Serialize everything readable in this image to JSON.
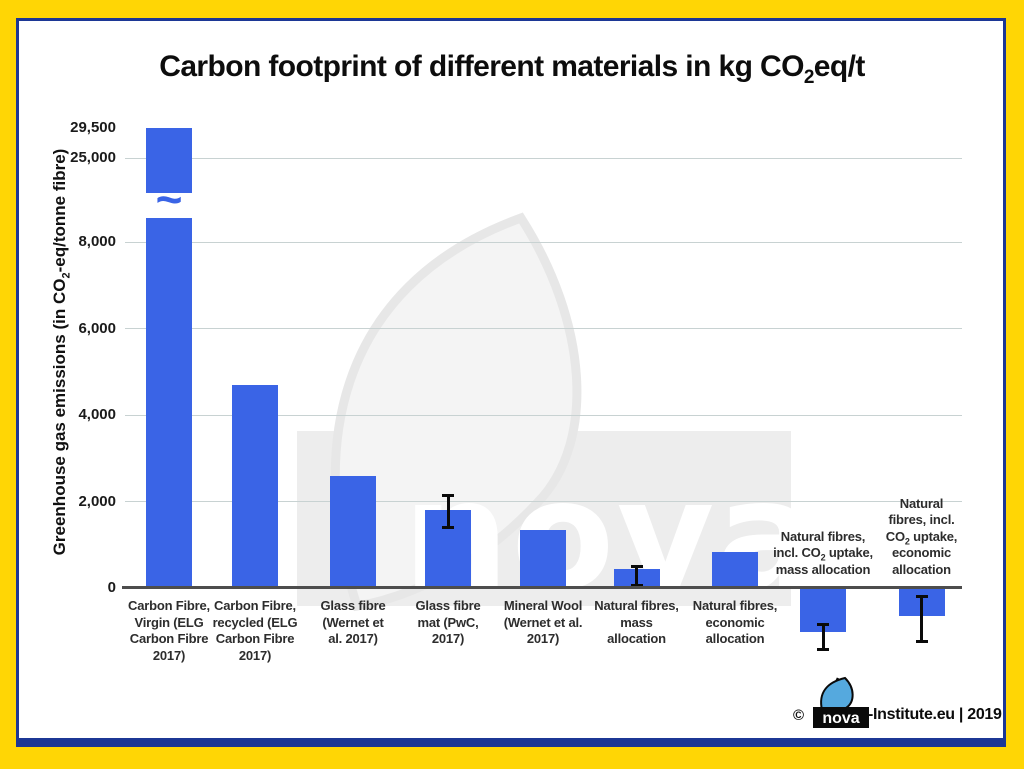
{
  "title": {
    "pre": "Carbon footprint of different materials in kg CO",
    "sub": "2",
    "post": "eq/t"
  },
  "y_axis_title": {
    "pre": "Greenhouse gas emissions (in CO",
    "sub": "2",
    "post": "-eq/tonne fibre)"
  },
  "chart_data": {
    "type": "bar",
    "title": "Carbon footprint of different materials in kg CO2eq/t",
    "ylabel": "Greenhouse gas emissions (in CO2-eq/tonne fibre)",
    "grid": true,
    "bar_color": "#3A64E6",
    "axis_break": "y-axis broken between 8,000 and 25,000; first bar drawn with a break symbol",
    "axis_break_symbol": "~",
    "ylim_lower_segment": [
      0,
      8500
    ],
    "ylim_upper_segment": [
      25000,
      29500
    ],
    "yticks": [
      {
        "label": "29,500",
        "value": 29500,
        "gridline": false
      },
      {
        "label": "25,000",
        "value": 25000,
        "gridline": true
      },
      {
        "label": "8,000",
        "value": 8000,
        "gridline": true
      },
      {
        "label": "6,000",
        "value": 6000,
        "gridline": true
      },
      {
        "label": "4,000",
        "value": 4000,
        "gridline": true
      },
      {
        "label": "2,000",
        "value": 2000,
        "gridline": true
      },
      {
        "label": "0",
        "value": 0,
        "gridline": false
      }
    ],
    "bars": [
      {
        "label": "Carbon Fibre, Virgin (ELG Carbon Fibre 2017)",
        "value": 29500,
        "broken": true,
        "label_side": "below"
      },
      {
        "label": "Carbon Fibre, recycled (ELG Carbon Fibre 2017)",
        "value": 4700,
        "label_side": "below"
      },
      {
        "label": "Glass fibre (Wernet et al. 2017)",
        "value": 2600,
        "label_side": "below"
      },
      {
        "label": "Glass fibre mat (PwC, 2017)",
        "value": 1800,
        "error": [
          1400,
          2150
        ],
        "label_side": "below"
      },
      {
        "label": "Mineral Wool (Wernet et al. 2017)",
        "value": 1350,
        "label_side": "below"
      },
      {
        "label": "Natural fibres, mass allocation",
        "value": 430,
        "error": [
          70,
          510
        ],
        "label_side": "below"
      },
      {
        "label": "Natural fibres, economic allocation",
        "value": 830,
        "label_side": "below"
      },
      {
        "label": "Natural fibres, incl. CO~2~ uptake, mass allocation",
        "value": -990,
        "error": [
          -1410,
          -830
        ],
        "label_side": "above"
      },
      {
        "label": "Natural fibres, incl. CO~2~ uptake, economic allocation",
        "value": -620,
        "error": [
          -1220,
          -180
        ],
        "label_side": "above"
      }
    ]
  },
  "watermark": {
    "text": "nova"
  },
  "footer": {
    "copyright": "©",
    "logo_text": "nova",
    "suffix": "-Institute.eu | 2019"
  },
  "colors": {
    "bar": "#3A64E6",
    "frame_yellow": "#FFD605",
    "frame_navy": "#1C3795",
    "axis": "#4D4D4D",
    "gridline": "#C8D2D2",
    "footer_leaf_blue": "#55A9DE"
  }
}
